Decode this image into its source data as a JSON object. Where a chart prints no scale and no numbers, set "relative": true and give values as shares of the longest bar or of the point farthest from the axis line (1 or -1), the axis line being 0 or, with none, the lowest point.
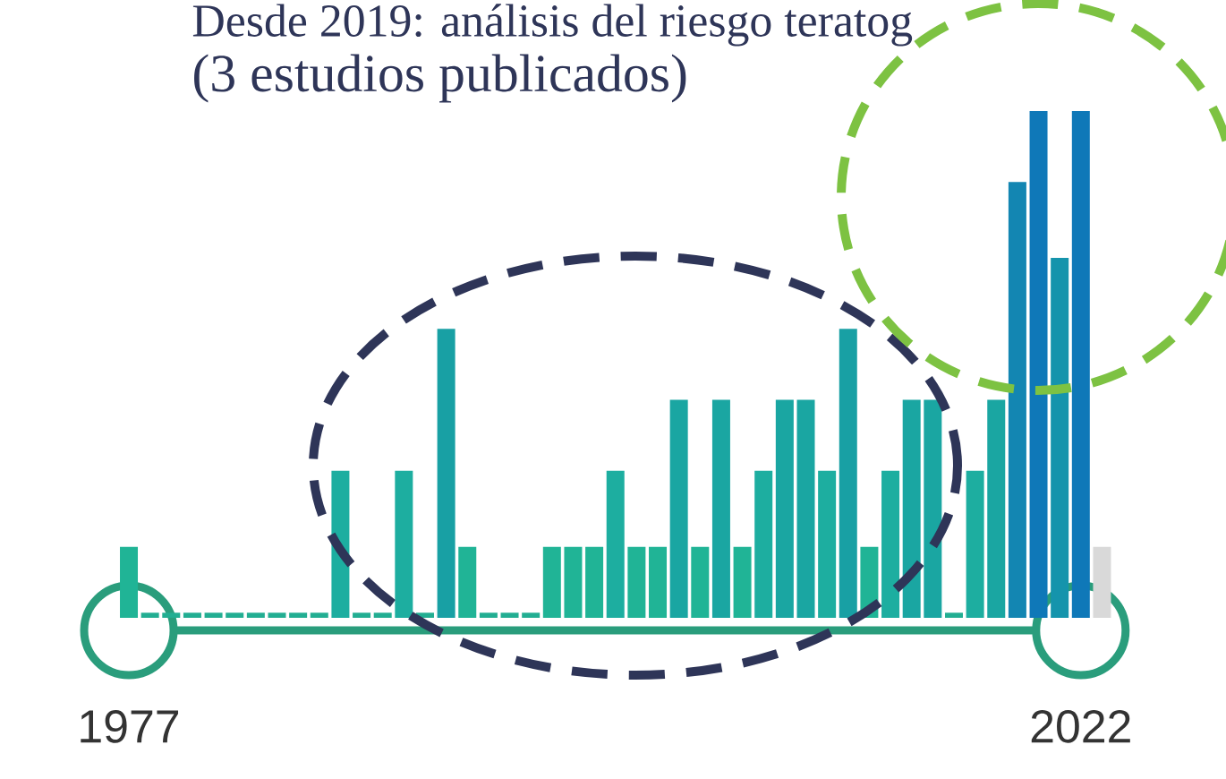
{
  "chart_data": {
    "type": "bar",
    "title": "Desde 2019: análisis del riesgo teratog",
    "subtitle": "(3 estudios publicados)",
    "relative": true,
    "categories": [
      "1977",
      null,
      null,
      null,
      null,
      null,
      null,
      null,
      null,
      null,
      null,
      null,
      null,
      null,
      null,
      null,
      null,
      null,
      null,
      null,
      null,
      null,
      null,
      null,
      null,
      null,
      null,
      null,
      null,
      null,
      null,
      null,
      null,
      null,
      null,
      null,
      null,
      null,
      null,
      null,
      null,
      null,
      null,
      null,
      null,
      "2022",
      null
    ],
    "values": [
      0.14,
      0.01,
      0.01,
      0.01,
      0.01,
      0.01,
      0.01,
      0.01,
      0.01,
      0.01,
      0.29,
      0.01,
      0.01,
      0.29,
      0.01,
      0.57,
      0.14,
      0.01,
      0.01,
      0.01,
      0.14,
      0.14,
      0.14,
      0.29,
      0.14,
      0.14,
      0.43,
      0.14,
      0.43,
      0.14,
      0.29,
      0.43,
      0.43,
      0.29,
      0.57,
      0.14,
      0.29,
      0.43,
      0.43,
      0.01,
      0.29,
      0.43,
      0.86,
      1,
      0.71,
      1,
      0.14
    ],
    "colors": [
      "#20b496",
      "#22ae92",
      "#22ae92",
      "#22ae92",
      "#22ae92",
      "#22ae92",
      "#22ae92",
      "#22ae92",
      "#22ae92",
      "#22ae92",
      "#1daea0",
      "#22ae92",
      "#22ae92",
      "#1daea0",
      "#22ae92",
      "#18a0a4",
      "#20b496",
      "#22ae92",
      "#22ae92",
      "#22ae92",
      "#20b496",
      "#20b496",
      "#20b496",
      "#1daea0",
      "#20b496",
      "#20b496",
      "#1aa6a2",
      "#20b496",
      "#1aa6a2",
      "#20b496",
      "#1daea0",
      "#1aa6a2",
      "#1aa6a2",
      "#1daea0",
      "#18a0a4",
      "#20b496",
      "#1daea0",
      "#1aa6a2",
      "#1aa6a2",
      "#22ae92",
      "#1daea0",
      "#1aa6a2",
      "#1386b2",
      "#0f78b8",
      "#1594ac",
      "#0f78b8",
      "#d9d9d9"
    ]
  }
}
